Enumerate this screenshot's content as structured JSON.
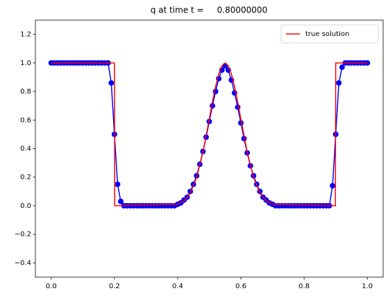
{
  "chart_data": {
    "type": "line",
    "title": "q at time t =     0.80000000",
    "xlim": [
      -0.05,
      1.05
    ],
    "ylim": [
      -0.5,
      1.3
    ],
    "xticks": [
      {
        "value": 0,
        "label": "0.0"
      },
      {
        "value": 0.2,
        "label": "0.2"
      },
      {
        "value": 0.4,
        "label": "0.4"
      },
      {
        "value": 0.6,
        "label": "0.6"
      },
      {
        "value": 0.8,
        "label": "0.8"
      },
      {
        "value": 1,
        "label": "1.0"
      }
    ],
    "yticks": [
      {
        "value": -0.4,
        "label": "−0.4"
      },
      {
        "value": -0.2,
        "label": "−0.2"
      },
      {
        "value": 0,
        "label": "0.0"
      },
      {
        "value": 0.2,
        "label": "0.2"
      },
      {
        "value": 0.4,
        "label": "0.4"
      },
      {
        "value": 0.6,
        "label": "0.6"
      },
      {
        "value": 0.8,
        "label": "0.8"
      },
      {
        "value": 1,
        "label": "1.0"
      },
      {
        "value": 1.2,
        "label": "1.2"
      }
    ],
    "legend": "upper right",
    "series": [
      {
        "color": "#0000ff",
        "marker": "o",
        "x": [
          0,
          0.01,
          0.02,
          0.03,
          0.04,
          0.05,
          0.06,
          0.07,
          0.08,
          0.09,
          0.1,
          0.11,
          0.12,
          0.13,
          0.14,
          0.15,
          0.16,
          0.17,
          0.18,
          0.19,
          0.2,
          0.21,
          0.22,
          0.23,
          0.24,
          0.25,
          0.26,
          0.27,
          0.28,
          0.29,
          0.3,
          0.31,
          0.32,
          0.33,
          0.34,
          0.35,
          0.36,
          0.37,
          0.38,
          0.39,
          0.4,
          0.41,
          0.42,
          0.43,
          0.44,
          0.45,
          0.46,
          0.47,
          0.48,
          0.49,
          0.5,
          0.51,
          0.52,
          0.53,
          0.54,
          0.55,
          0.56,
          0.57,
          0.58,
          0.59,
          0.6,
          0.61,
          0.62,
          0.63,
          0.64,
          0.65,
          0.66,
          0.67,
          0.68,
          0.69,
          0.7,
          0.71,
          0.72,
          0.73,
          0.74,
          0.75,
          0.76,
          0.77,
          0.78,
          0.79,
          0.8,
          0.81,
          0.82,
          0.83,
          0.84,
          0.85,
          0.86,
          0.87,
          0.88,
          0.89,
          0.9,
          0.91,
          0.92,
          0.93,
          0.94,
          0.95,
          0.96,
          0.97,
          0.98,
          0.99,
          1
        ],
        "values": [
          1,
          1,
          1,
          1,
          1,
          1,
          1,
          1,
          1,
          1,
          1,
          1,
          1,
          1,
          1,
          1,
          1,
          1,
          1,
          0.86,
          0.5,
          0.15,
          0.03,
          0,
          0,
          0,
          0,
          0,
          0,
          0,
          0,
          0,
          0,
          0,
          0,
          0,
          0,
          0,
          0,
          0,
          0.01,
          0.02,
          0.04,
          0.06,
          0.1,
          0.15,
          0.21,
          0.29,
          0.38,
          0.48,
          0.59,
          0.7,
          0.8,
          0.89,
          0.95,
          0.98,
          0.95,
          0.88,
          0.79,
          0.69,
          0.58,
          0.47,
          0.37,
          0.28,
          0.21,
          0.15,
          0.1,
          0.06,
          0.04,
          0.02,
          0.01,
          0,
          0,
          0,
          0,
          0,
          0,
          0,
          0,
          0,
          0,
          0,
          0,
          0,
          0,
          0,
          0,
          0,
          0,
          0.14,
          0.5,
          0.86,
          0.97,
          1,
          1,
          1,
          1,
          1,
          1,
          1,
          1
        ]
      },
      {
        "name": "true solution",
        "color": "#ff0000",
        "x": [
          0,
          0.2,
          0.201,
          0.4,
          0.42,
          0.44,
          0.46,
          0.48,
          0.5,
          0.51,
          0.52,
          0.53,
          0.54,
          0.55,
          0.56,
          0.57,
          0.58,
          0.59,
          0.6,
          0.62,
          0.64,
          0.66,
          0.68,
          0.7,
          0.899,
          0.9,
          1
        ],
        "values": [
          1,
          1,
          0,
          0.011,
          0.034,
          0.089,
          0.198,
          0.375,
          0.607,
          0.726,
          0.835,
          0.923,
          0.98,
          1,
          0.98,
          0.923,
          0.835,
          0.726,
          0.607,
          0.375,
          0.198,
          0.089,
          0.034,
          0.011,
          0,
          1,
          1
        ]
      }
    ]
  }
}
